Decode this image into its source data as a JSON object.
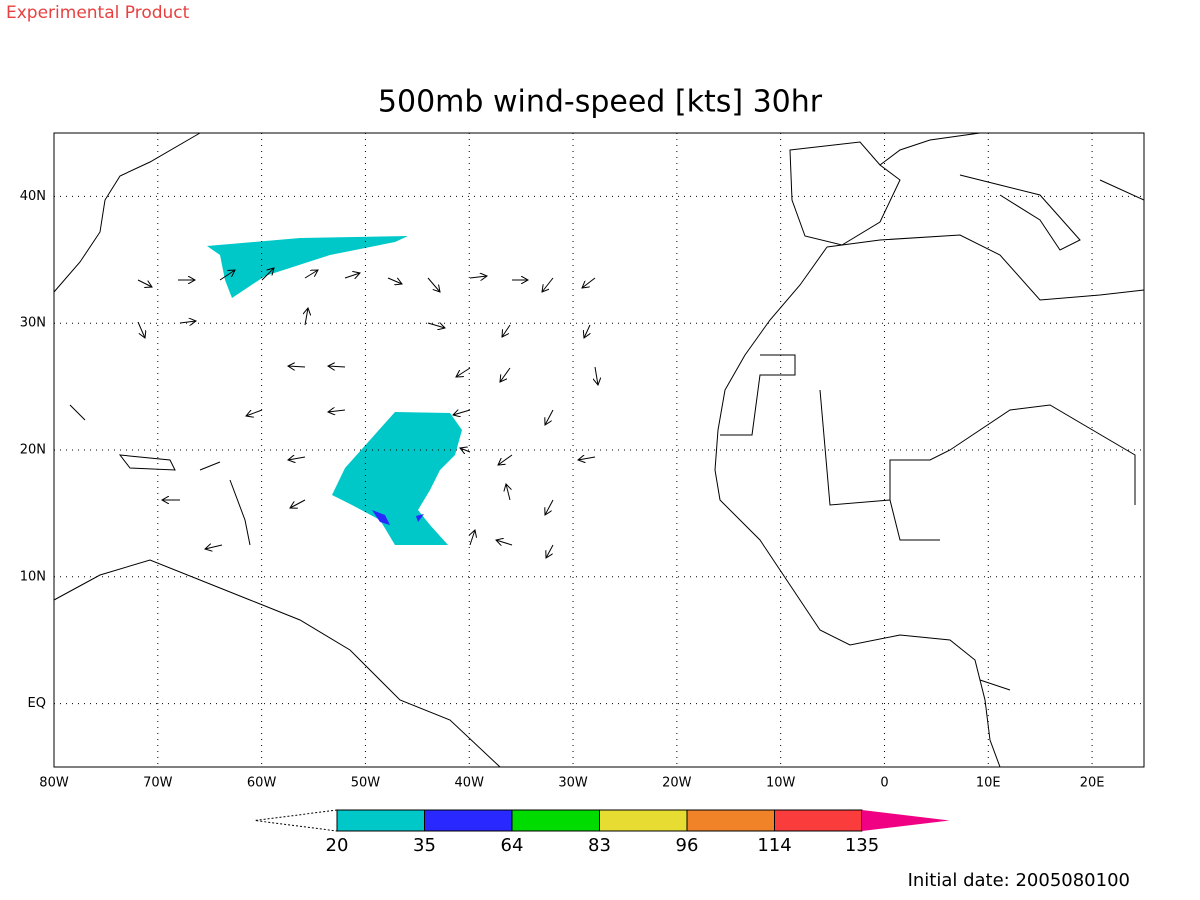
{
  "header": {
    "note": "Experimental Product",
    "title": "500mb wind-speed [kts] 30hr"
  },
  "map": {
    "xlim": [
      -80,
      25
    ],
    "ylim": [
      -5,
      45
    ],
    "xticks": [
      {
        "value": -80,
        "label": "80W"
      },
      {
        "value": -70,
        "label": "70W"
      },
      {
        "value": -60,
        "label": "60W"
      },
      {
        "value": -50,
        "label": "50W"
      },
      {
        "value": -40,
        "label": "40W"
      },
      {
        "value": -30,
        "label": "30W"
      },
      {
        "value": -20,
        "label": "20W"
      },
      {
        "value": -10,
        "label": "10W"
      },
      0,
      {
        "value": 10,
        "label": "10E"
      },
      {
        "value": 20,
        "label": "20E"
      }
    ],
    "yticks": [
      {
        "value": 0,
        "label": "EQ"
      },
      {
        "value": 10,
        "label": "10N"
      },
      {
        "value": 20,
        "label": "20N"
      },
      {
        "value": 30,
        "label": "30N"
      },
      {
        "value": 40,
        "label": "40N"
      }
    ],
    "grid": true
  },
  "colorbar": {
    "levels": [
      20,
      35,
      64,
      83,
      96,
      114,
      135
    ],
    "colors": [
      "#00c8c8",
      "#2828ff",
      "#00dc00",
      "#e6dc32",
      "#f08228",
      "#fa3c3c",
      "#f00082"
    ]
  },
  "footer": {
    "date": "Initial date: 2005080100"
  }
}
